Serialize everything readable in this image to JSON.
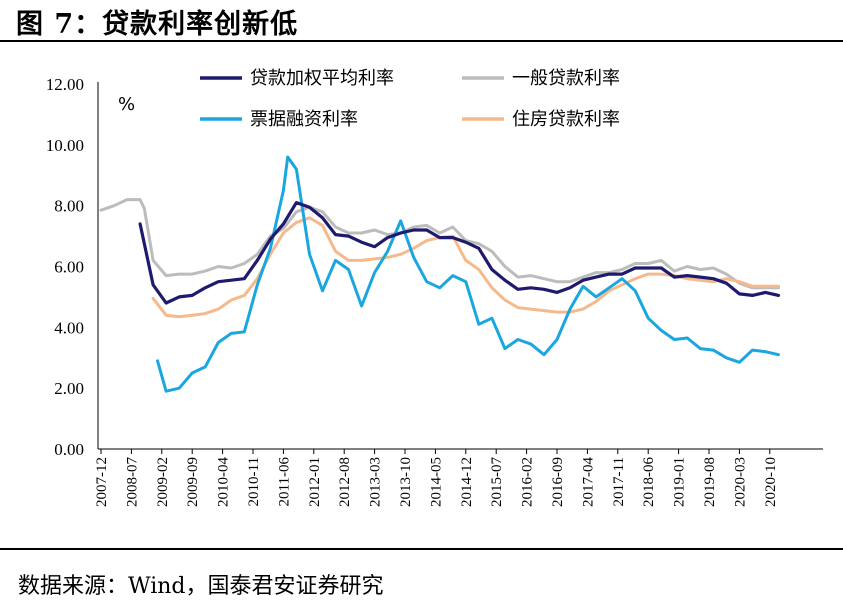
{
  "figure_title": "图 7：贷款利率创新低",
  "source": "数据来源：Wind，国泰君安证券研究",
  "chart_data": {
    "type": "line",
    "unit_label": "%",
    "ylim": [
      0,
      12
    ],
    "y_ticks": [
      "0.00",
      "2.00",
      "4.00",
      "6.00",
      "8.00",
      "10.00",
      "12.00"
    ],
    "x_ticks": [
      "2007-12",
      "2008-07",
      "2009-02",
      "2009-09",
      "2010-04",
      "2010-11",
      "2011-06",
      "2012-01",
      "2012-08",
      "2013-03",
      "2013-10",
      "2014-05",
      "2014-12",
      "2015-07",
      "2016-02",
      "2016-09",
      "2017-04",
      "2017-11",
      "2018-06",
      "2019-01",
      "2019-08",
      "2020-03",
      "2020-10"
    ],
    "legend_position": "top",
    "series": [
      {
        "name": "贷款加权平均利率",
        "color": "#1f1a6e",
        "points": [
          [
            "2008-09",
            7.4
          ],
          [
            "2008-12",
            5.4
          ],
          [
            "2009-03",
            4.8
          ],
          [
            "2009-06",
            5.0
          ],
          [
            "2009-09",
            5.05
          ],
          [
            "2009-12",
            5.3
          ],
          [
            "2010-03",
            5.5
          ],
          [
            "2010-06",
            5.55
          ],
          [
            "2010-09",
            5.6
          ],
          [
            "2010-12",
            6.2
          ],
          [
            "2011-03",
            6.9
          ],
          [
            "2011-06",
            7.4
          ],
          [
            "2011-09",
            8.1
          ],
          [
            "2011-12",
            7.95
          ],
          [
            "2012-03",
            7.6
          ],
          [
            "2012-06",
            7.05
          ],
          [
            "2012-09",
            7.0
          ],
          [
            "2012-12",
            6.8
          ],
          [
            "2013-03",
            6.65
          ],
          [
            "2013-06",
            6.95
          ],
          [
            "2013-09",
            7.1
          ],
          [
            "2013-12",
            7.2
          ],
          [
            "2014-03",
            7.2
          ],
          [
            "2014-06",
            6.95
          ],
          [
            "2014-09",
            6.95
          ],
          [
            "2014-12",
            6.8
          ],
          [
            "2015-03",
            6.6
          ],
          [
            "2015-06",
            5.9
          ],
          [
            "2015-09",
            5.55
          ],
          [
            "2015-12",
            5.25
          ],
          [
            "2016-03",
            5.3
          ],
          [
            "2016-06",
            5.25
          ],
          [
            "2016-09",
            5.15
          ],
          [
            "2016-12",
            5.3
          ],
          [
            "2017-03",
            5.55
          ],
          [
            "2017-06",
            5.65
          ],
          [
            "2017-09",
            5.75
          ],
          [
            "2017-12",
            5.75
          ],
          [
            "2018-03",
            5.95
          ],
          [
            "2018-06",
            5.95
          ],
          [
            "2018-09",
            5.95
          ],
          [
            "2018-12",
            5.65
          ],
          [
            "2019-03",
            5.7
          ],
          [
            "2019-06",
            5.65
          ],
          [
            "2019-09",
            5.6
          ],
          [
            "2019-12",
            5.45
          ],
          [
            "2020-03",
            5.1
          ],
          [
            "2020-06",
            5.05
          ],
          [
            "2020-09",
            5.15
          ],
          [
            "2020-12",
            5.05
          ]
        ]
      },
      {
        "name": "一般贷款利率",
        "color": "#bcbcbc",
        "points": [
          [
            "2007-12",
            7.85
          ],
          [
            "2008-03",
            8.0
          ],
          [
            "2008-06",
            8.2
          ],
          [
            "2008-09",
            8.2
          ],
          [
            "2008-10",
            7.9
          ],
          [
            "2008-12",
            6.2
          ],
          [
            "2009-03",
            5.7
          ],
          [
            "2009-06",
            5.75
          ],
          [
            "2009-09",
            5.75
          ],
          [
            "2009-12",
            5.85
          ],
          [
            "2010-03",
            6.0
          ],
          [
            "2010-06",
            5.95
          ],
          [
            "2010-09",
            6.1
          ],
          [
            "2010-12",
            6.4
          ],
          [
            "2011-03",
            7.0
          ],
          [
            "2011-06",
            7.25
          ],
          [
            "2011-09",
            7.8
          ],
          [
            "2011-12",
            7.95
          ],
          [
            "2012-03",
            7.8
          ],
          [
            "2012-06",
            7.3
          ],
          [
            "2012-09",
            7.1
          ],
          [
            "2012-12",
            7.1
          ],
          [
            "2013-03",
            7.2
          ],
          [
            "2013-06",
            7.05
          ],
          [
            "2013-09",
            7.1
          ],
          [
            "2013-12",
            7.3
          ],
          [
            "2014-03",
            7.35
          ],
          [
            "2014-06",
            7.1
          ],
          [
            "2014-09",
            7.3
          ],
          [
            "2014-12",
            6.85
          ],
          [
            "2015-03",
            6.75
          ],
          [
            "2015-06",
            6.5
          ],
          [
            "2015-09",
            6.0
          ],
          [
            "2015-12",
            5.65
          ],
          [
            "2016-03",
            5.7
          ],
          [
            "2016-06",
            5.6
          ],
          [
            "2016-09",
            5.5
          ],
          [
            "2016-12",
            5.5
          ],
          [
            "2017-03",
            5.65
          ],
          [
            "2017-06",
            5.8
          ],
          [
            "2017-09",
            5.8
          ],
          [
            "2017-12",
            5.9
          ],
          [
            "2018-03",
            6.1
          ],
          [
            "2018-06",
            6.1
          ],
          [
            "2018-09",
            6.2
          ],
          [
            "2018-12",
            5.85
          ],
          [
            "2019-03",
            6.0
          ],
          [
            "2019-06",
            5.9
          ],
          [
            "2019-09",
            5.95
          ],
          [
            "2019-12",
            5.75
          ],
          [
            "2020-03",
            5.45
          ],
          [
            "2020-06",
            5.3
          ],
          [
            "2020-09",
            5.3
          ],
          [
            "2020-12",
            5.3
          ]
        ]
      },
      {
        "name": "票据融资利率",
        "color": "#1aa7e0",
        "points": [
          [
            "2009-01",
            2.9
          ],
          [
            "2009-03",
            1.9
          ],
          [
            "2009-06",
            2.0
          ],
          [
            "2009-09",
            2.5
          ],
          [
            "2009-12",
            2.7
          ],
          [
            "2010-03",
            3.5
          ],
          [
            "2010-06",
            3.8
          ],
          [
            "2010-09",
            3.85
          ],
          [
            "2010-12",
            5.4
          ],
          [
            "2011-03",
            6.6
          ],
          [
            "2011-06",
            8.5
          ],
          [
            "2011-07",
            9.6
          ],
          [
            "2011-09",
            9.2
          ],
          [
            "2011-12",
            6.4
          ],
          [
            "2012-03",
            5.2
          ],
          [
            "2012-06",
            6.2
          ],
          [
            "2012-09",
            5.9
          ],
          [
            "2012-12",
            4.7
          ],
          [
            "2013-03",
            5.8
          ],
          [
            "2013-06",
            6.5
          ],
          [
            "2013-09",
            7.5
          ],
          [
            "2013-12",
            6.3
          ],
          [
            "2014-03",
            5.5
          ],
          [
            "2014-06",
            5.3
          ],
          [
            "2014-09",
            5.7
          ],
          [
            "2014-12",
            5.5
          ],
          [
            "2015-03",
            4.1
          ],
          [
            "2015-06",
            4.3
          ],
          [
            "2015-09",
            3.3
          ],
          [
            "2015-12",
            3.6
          ],
          [
            "2016-03",
            3.45
          ],
          [
            "2016-06",
            3.1
          ],
          [
            "2016-09",
            3.6
          ],
          [
            "2016-12",
            4.6
          ],
          [
            "2017-03",
            5.35
          ],
          [
            "2017-06",
            5.0
          ],
          [
            "2017-09",
            5.3
          ],
          [
            "2017-12",
            5.6
          ],
          [
            "2018-03",
            5.2
          ],
          [
            "2018-06",
            4.3
          ],
          [
            "2018-09",
            3.9
          ],
          [
            "2018-12",
            3.6
          ],
          [
            "2019-03",
            3.65
          ],
          [
            "2019-06",
            3.3
          ],
          [
            "2019-09",
            3.25
          ],
          [
            "2019-12",
            3.0
          ],
          [
            "2020-03",
            2.85
          ],
          [
            "2020-06",
            3.25
          ],
          [
            "2020-09",
            3.2
          ],
          [
            "2020-12",
            3.1
          ]
        ]
      },
      {
        "name": "住房贷款利率",
        "color": "#f5b98c",
        "points": [
          [
            "2008-12",
            4.95
          ],
          [
            "2009-03",
            4.4
          ],
          [
            "2009-06",
            4.35
          ],
          [
            "2009-09",
            4.4
          ],
          [
            "2009-12",
            4.45
          ],
          [
            "2010-03",
            4.6
          ],
          [
            "2010-06",
            4.9
          ],
          [
            "2010-09",
            5.05
          ],
          [
            "2010-12",
            5.6
          ],
          [
            "2011-03",
            6.4
          ],
          [
            "2011-06",
            7.1
          ],
          [
            "2011-09",
            7.45
          ],
          [
            "2011-12",
            7.6
          ],
          [
            "2012-03",
            7.35
          ],
          [
            "2012-06",
            6.5
          ],
          [
            "2012-09",
            6.2
          ],
          [
            "2012-12",
            6.2
          ],
          [
            "2013-03",
            6.25
          ],
          [
            "2013-06",
            6.3
          ],
          [
            "2013-09",
            6.4
          ],
          [
            "2013-12",
            6.6
          ],
          [
            "2014-03",
            6.85
          ],
          [
            "2014-06",
            6.95
          ],
          [
            "2014-09",
            7.0
          ],
          [
            "2014-12",
            6.2
          ],
          [
            "2015-03",
            5.9
          ],
          [
            "2015-06",
            5.3
          ],
          [
            "2015-09",
            4.9
          ],
          [
            "2015-12",
            4.65
          ],
          [
            "2016-03",
            4.6
          ],
          [
            "2016-06",
            4.55
          ],
          [
            "2016-09",
            4.5
          ],
          [
            "2016-12",
            4.5
          ],
          [
            "2017-03",
            4.6
          ],
          [
            "2017-06",
            4.85
          ],
          [
            "2017-09",
            5.2
          ],
          [
            "2017-12",
            5.4
          ],
          [
            "2018-03",
            5.6
          ],
          [
            "2018-06",
            5.75
          ],
          [
            "2018-09",
            5.75
          ],
          [
            "2018-12",
            5.7
          ],
          [
            "2019-03",
            5.6
          ],
          [
            "2019-06",
            5.55
          ],
          [
            "2019-09",
            5.5
          ],
          [
            "2019-12",
            5.6
          ],
          [
            "2020-03",
            5.5
          ],
          [
            "2020-06",
            5.35
          ],
          [
            "2020-09",
            5.35
          ],
          [
            "2020-12",
            5.35
          ]
        ]
      }
    ]
  }
}
